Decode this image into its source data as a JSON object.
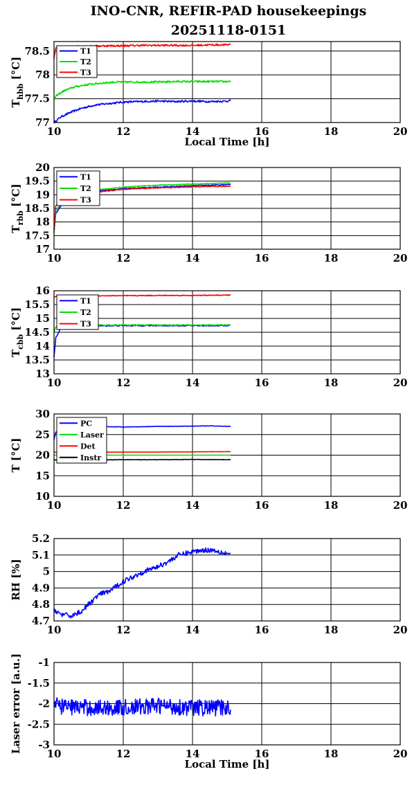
{
  "figure": {
    "title_line1": "INO-CNR, REFIR-PAD housekeepings",
    "title_line2": "20251118-0151"
  },
  "colors": {
    "blue": "#0000ff",
    "green": "#00dd00",
    "red": "#ff0000",
    "black": "#000000"
  },
  "chart_data": [
    {
      "type": "line",
      "ylabel_main": "T",
      "ylabel_sub": "hbb",
      "ylabel_unit": " [°C]",
      "xlabel": "Local Time [h]",
      "xlim": [
        10,
        20
      ],
      "ylim": [
        77,
        78.7
      ],
      "xticks": [
        10,
        12,
        14,
        16,
        18,
        20
      ],
      "yticks": [
        77,
        77.5,
        78,
        78.5
      ],
      "ytick_labels": [
        "77",
        "77.5",
        "78",
        "78.5"
      ],
      "grid": true,
      "legend_position": "top-left",
      "series": [
        {
          "name": "T1",
          "color": "#0000ff",
          "x": [
            10,
            10.2,
            10.5,
            10.8,
            11.2,
            11.6,
            12,
            12.5,
            13,
            13.5,
            14,
            14.5,
            15,
            15.1
          ],
          "y": [
            77.0,
            77.12,
            77.22,
            77.3,
            77.37,
            77.4,
            77.43,
            77.44,
            77.45,
            77.44,
            77.45,
            77.44,
            77.45,
            77.46
          ],
          "noise": 0.02
        },
        {
          "name": "T2",
          "color": "#00dd00",
          "x": [
            10,
            10.1,
            10.3,
            10.6,
            11,
            11.4,
            11.8,
            12.2,
            12.6,
            13,
            13.5,
            14,
            14.5,
            15,
            15.1
          ],
          "y": [
            77.5,
            77.58,
            77.67,
            77.75,
            77.8,
            77.83,
            77.85,
            77.85,
            77.85,
            77.85,
            77.86,
            77.86,
            77.86,
            77.86,
            77.87
          ],
          "noise": 0.02
        },
        {
          "name": "T3",
          "color": "#ff0000",
          "x": [
            10,
            10.05,
            10.3,
            10.7,
            11,
            11.5,
            12,
            12.5,
            13,
            13.5,
            14,
            14.5,
            15,
            15.1
          ],
          "y": [
            78.35,
            78.55,
            78.58,
            78.6,
            78.6,
            78.61,
            78.61,
            78.62,
            78.62,
            78.62,
            78.62,
            78.63,
            78.63,
            78.65
          ],
          "noise": 0.02
        }
      ]
    },
    {
      "type": "line",
      "ylabel_main": "T",
      "ylabel_sub": "rbb",
      "ylabel_unit": " [°C]",
      "xlabel": "",
      "xlim": [
        10,
        20
      ],
      "ylim": [
        17,
        20
      ],
      "xticks": [
        10,
        12,
        14,
        16,
        18,
        20
      ],
      "yticks": [
        17,
        17.5,
        18,
        18.5,
        19,
        19.5,
        20
      ],
      "ytick_labels": [
        "17",
        "17.5",
        "18",
        "18.5",
        "19",
        "19.5",
        "20"
      ],
      "grid": true,
      "legend_position": "top-left",
      "series": [
        {
          "name": "T1",
          "color": "#0000ff",
          "x": [
            10,
            10.05,
            10.3,
            10.8,
            11.4,
            12,
            12.5,
            13,
            13.5,
            14,
            14.5,
            15,
            15.1
          ],
          "y": [
            17.6,
            18.3,
            18.8,
            19.0,
            19.15,
            19.22,
            19.25,
            19.28,
            19.3,
            19.33,
            19.35,
            19.37,
            19.38
          ],
          "noise": 0.015
        },
        {
          "name": "T2",
          "color": "#00dd00",
          "x": [
            10,
            10.05,
            10.3,
            10.8,
            11.4,
            12,
            12.5,
            13,
            13.5,
            14,
            14.5,
            15,
            15.1
          ],
          "y": [
            17.6,
            18.4,
            18.85,
            19.05,
            19.2,
            19.28,
            19.32,
            19.35,
            19.37,
            19.39,
            19.41,
            19.43,
            19.43
          ],
          "noise": 0.015
        },
        {
          "name": "T3",
          "color": "#ff0000",
          "x": [
            10,
            10.05,
            10.3,
            10.8,
            11.4,
            12,
            12.5,
            13,
            13.5,
            14,
            14.5,
            15,
            15.1
          ],
          "y": [
            17.7,
            18.6,
            18.85,
            19.0,
            19.12,
            19.2,
            19.23,
            19.25,
            19.27,
            19.29,
            19.3,
            19.31,
            19.31
          ],
          "noise": 0.015
        }
      ]
    },
    {
      "type": "line",
      "ylabel_main": "T",
      "ylabel_sub": "cbb",
      "ylabel_unit": " [°C]",
      "xlabel": "",
      "xlim": [
        10,
        20
      ],
      "ylim": [
        13,
        16
      ],
      "xticks": [
        10,
        12,
        14,
        16,
        18,
        20
      ],
      "yticks": [
        13,
        13.5,
        14,
        14.5,
        15,
        15.5,
        16
      ],
      "ytick_labels": [
        "13",
        "13.5",
        "14",
        "14.5",
        "15",
        "15.5",
        "16"
      ],
      "grid": true,
      "legend_position": "top-left",
      "series": [
        {
          "name": "T1",
          "color": "#0000ff",
          "x": [
            10,
            10.05,
            10.2,
            10.5,
            11,
            12,
            13,
            14,
            15,
            15.1
          ],
          "y": [
            13.6,
            14.3,
            14.65,
            14.72,
            14.73,
            14.74,
            14.74,
            14.74,
            14.74,
            14.75
          ],
          "noise": 0.02
        },
        {
          "name": "T2",
          "color": "#00dd00",
          "x": [
            10,
            10.05,
            10.2,
            10.5,
            11,
            12,
            13,
            14,
            15,
            15.1
          ],
          "y": [
            14.5,
            14.7,
            14.75,
            14.75,
            14.76,
            14.76,
            14.76,
            14.76,
            14.76,
            14.77
          ],
          "noise": 0.02
        },
        {
          "name": "T3",
          "color": "#ff0000",
          "x": [
            10,
            10.05,
            10.3,
            11,
            12,
            13,
            14,
            15,
            15.1
          ],
          "y": [
            15.75,
            15.8,
            15.82,
            15.82,
            15.82,
            15.83,
            15.83,
            15.84,
            15.85
          ],
          "noise": 0.015
        }
      ]
    },
    {
      "type": "line",
      "ylabel_main": "T [°C]",
      "ylabel_sub": "",
      "ylabel_unit": "",
      "xlabel": "",
      "xlim": [
        10,
        20
      ],
      "ylim": [
        10,
        30
      ],
      "xticks": [
        10,
        12,
        14,
        16,
        18,
        20
      ],
      "yticks": [
        10,
        15,
        20,
        25,
        30
      ],
      "ytick_labels": [
        "10",
        "15",
        "20",
        "25",
        "30"
      ],
      "grid": true,
      "legend_position": "top-left",
      "series": [
        {
          "name": "PC",
          "color": "#0000ff",
          "x": [
            10,
            10.05,
            10.2,
            10.5,
            11,
            11.5,
            12,
            12.5,
            13,
            13.5,
            14,
            14.5,
            15,
            15.1
          ],
          "y": [
            23.8,
            25.5,
            26.5,
            26.8,
            26.9,
            26.9,
            26.85,
            26.9,
            27.0,
            27.0,
            27.05,
            27.1,
            27.0,
            27.0
          ],
          "noise": 0.05
        },
        {
          "name": "Laser",
          "color": "#00dd00",
          "x": [
            10,
            11,
            12,
            13,
            14,
            15,
            15.1
          ],
          "y": [
            20.0,
            20.0,
            20.0,
            20.0,
            20.0,
            20.0,
            20.0
          ],
          "noise": 0.0
        },
        {
          "name": "Det",
          "color": "#ff0000",
          "x": [
            10,
            11,
            12,
            13,
            14,
            15,
            15.1
          ],
          "y": [
            20.7,
            20.7,
            20.75,
            20.75,
            20.8,
            20.85,
            20.85
          ],
          "noise": 0.03
        },
        {
          "name": "Instr",
          "color": "#000000",
          "x": [
            10,
            11,
            12,
            13,
            14,
            15,
            15.1
          ],
          "y": [
            18.8,
            18.85,
            18.9,
            18.9,
            18.95,
            18.9,
            18.9
          ],
          "noise": 0.05
        }
      ]
    },
    {
      "type": "line",
      "ylabel_main": "RH [%]",
      "ylabel_sub": "",
      "ylabel_unit": "",
      "xlabel": "",
      "xlim": [
        10,
        20
      ],
      "ylim": [
        4.7,
        5.2
      ],
      "xticks": [
        10,
        12,
        14,
        16,
        18,
        20
      ],
      "yticks": [
        4.7,
        4.8,
        4.9,
        5,
        5.1,
        5.2
      ],
      "ytick_labels": [
        "4.7",
        "4.8",
        "4.9",
        "5",
        "5.1",
        "5.2"
      ],
      "grid": true,
      "legend_position": "none",
      "series": [
        {
          "name": "",
          "color": "#0000ff",
          "x": [
            10,
            10.2,
            10.5,
            10.8,
            11,
            11.3,
            11.6,
            12,
            12.3,
            12.6,
            13,
            13.3,
            13.6,
            14,
            14.3,
            14.6,
            15,
            15.1
          ],
          "y": [
            4.77,
            4.74,
            4.73,
            4.76,
            4.8,
            4.86,
            4.88,
            4.94,
            4.97,
            5.0,
            5.03,
            5.06,
            5.1,
            5.12,
            5.13,
            5.13,
            5.11,
            5.11
          ],
          "noise": 0.015
        }
      ]
    },
    {
      "type": "line",
      "ylabel_main": "Laser error [a.u.]",
      "ylabel_sub": "",
      "ylabel_unit": "",
      "xlabel": "Local Time [h]",
      "xlim": [
        10,
        20
      ],
      "ylim": [
        -3,
        -1
      ],
      "xticks": [
        10,
        12,
        14,
        16,
        18,
        20
      ],
      "yticks": [
        -3,
        -2.5,
        -2,
        -1.5,
        -1
      ],
      "ytick_labels": [
        "-3",
        "-2.5",
        "-2",
        "-1.5",
        "-1"
      ],
      "grid": true,
      "legend_position": "none",
      "series": [
        {
          "name": "",
          "color": "#0000ff",
          "x": [
            10,
            11,
            12,
            13,
            14,
            15,
            15.1
          ],
          "y": [
            -2.05,
            -2.1,
            -2.1,
            -2.05,
            -2.1,
            -2.1,
            -2.15
          ],
          "noise": 0.2
        }
      ]
    }
  ]
}
